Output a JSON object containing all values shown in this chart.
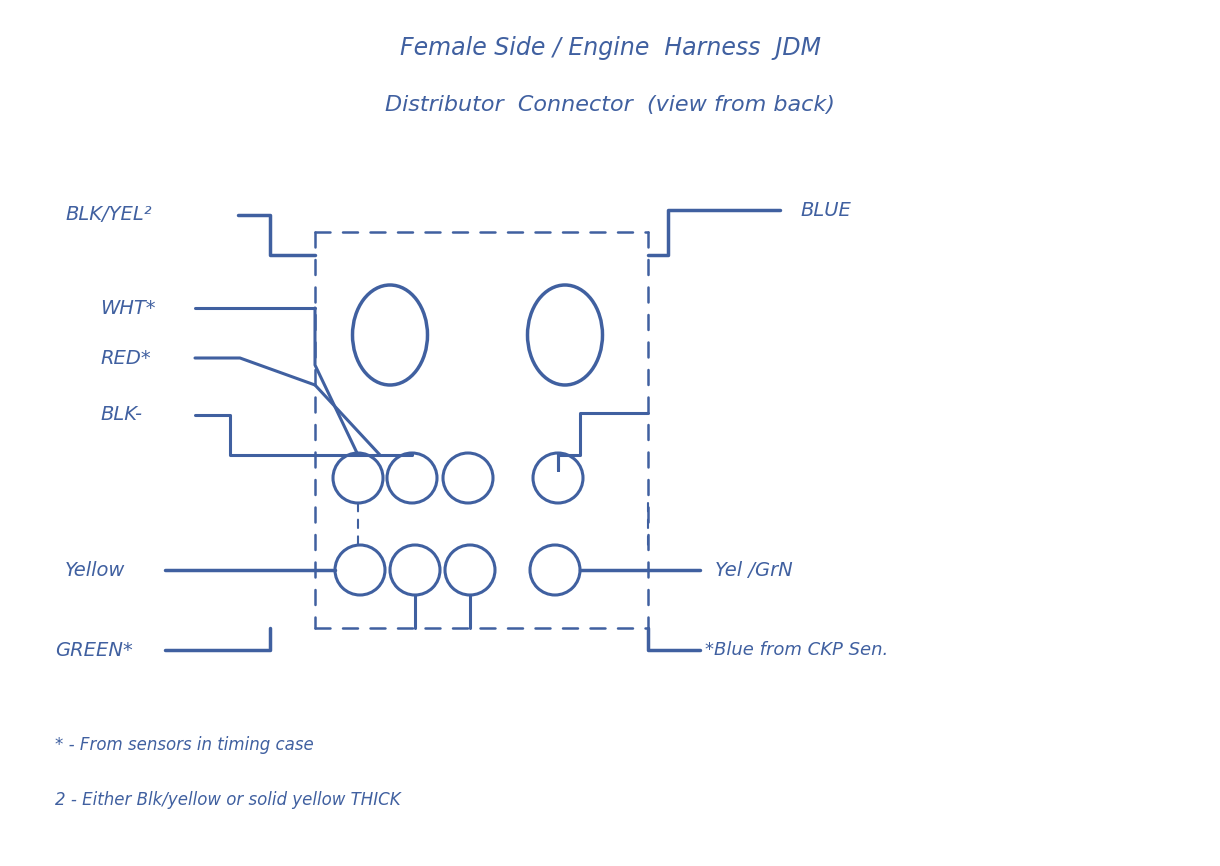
{
  "title_line1": "Female Side / Engine  Harness  JDM",
  "title_line2": "Distributor  Connector  (view from back)",
  "bg_color": "#ffffff",
  "ink_color": "#4060a0",
  "footnote1": "* - From sensors in timing case",
  "footnote2": "2 - Either Blk/yellow or solid yellow THICK"
}
